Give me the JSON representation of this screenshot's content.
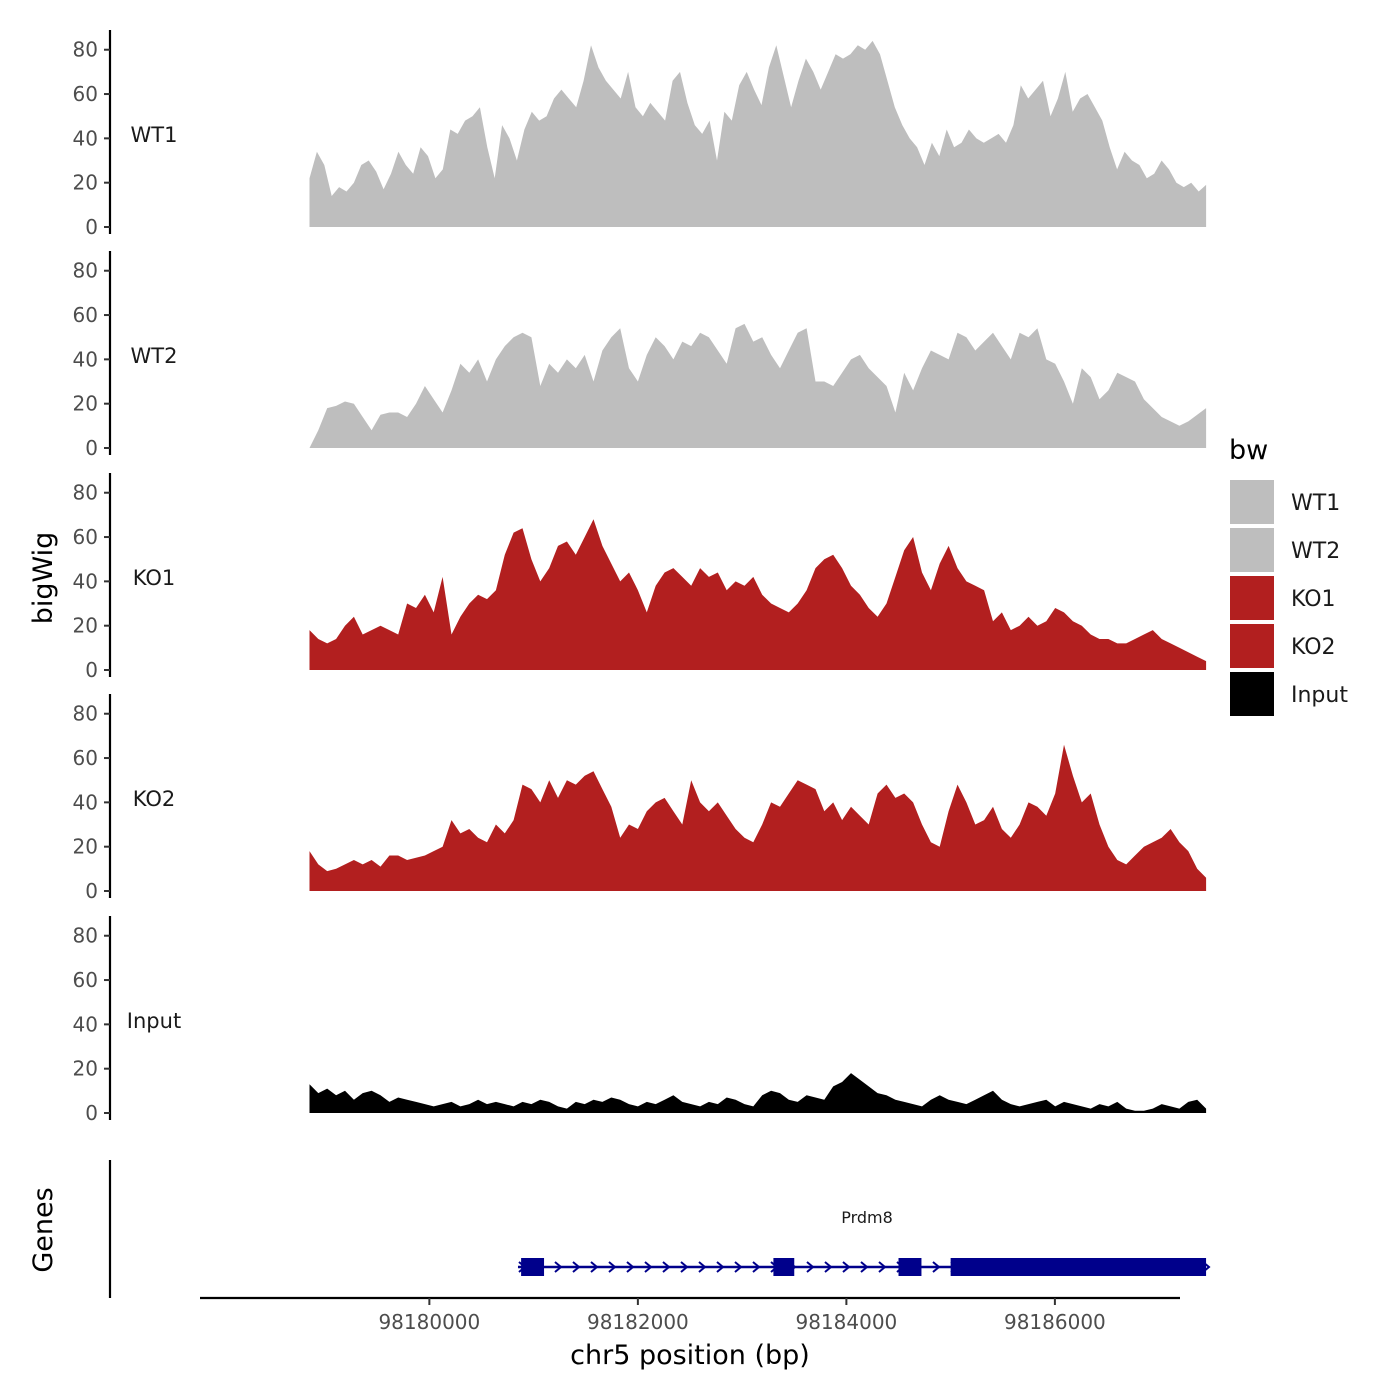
{
  "chart_data": {
    "type": "area",
    "title": "",
    "xlabel": "chr5 position (bp)",
    "ylabel": "bigWig",
    "genes_label": "Genes",
    "xlim": [
      98177800,
      98187200
    ],
    "xrange_data": [
      98178850,
      98187450
    ],
    "ylim": [
      0,
      88
    ],
    "yticks": [
      0,
      20,
      40,
      60,
      80
    ],
    "xticks": [
      98180000,
      98182000,
      98184000,
      98186000
    ],
    "legend": {
      "title": "bw",
      "position": "right",
      "entries": [
        {
          "label": "WT1",
          "color": "#bebebe"
        },
        {
          "label": "WT2",
          "color": "#bebebe"
        },
        {
          "label": "KO1",
          "color": "#b21f1f"
        },
        {
          "label": "KO2",
          "color": "#b21f1f"
        },
        {
          "label": "Input",
          "color": "#000000"
        }
      ]
    },
    "series": [
      {
        "name": "WT1",
        "color": "#bebebe",
        "values": [
          22,
          34,
          28,
          14,
          18,
          16,
          20,
          28,
          30,
          25,
          17,
          24,
          34,
          28,
          24,
          36,
          32,
          22,
          26,
          44,
          42,
          48,
          50,
          54,
          36,
          22,
          46,
          40,
          30,
          44,
          52,
          48,
          50,
          58,
          62,
          58,
          54,
          66,
          82,
          72,
          66,
          62,
          58,
          70,
          54,
          50,
          56,
          52,
          48,
          66,
          70,
          56,
          46,
          42,
          48,
          30,
          52,
          48,
          64,
          70,
          62,
          55,
          72,
          82,
          68,
          54,
          66,
          76,
          70,
          62,
          70,
          78,
          76,
          78,
          82,
          80,
          84,
          78,
          66,
          54,
          46,
          40,
          36,
          28,
          38,
          32,
          44,
          36,
          38,
          44,
          40,
          38,
          40,
          42,
          38,
          46,
          64,
          58,
          62,
          66,
          50,
          58,
          70,
          52,
          58,
          60,
          54,
          48,
          36,
          26,
          34,
          30,
          28,
          22,
          24,
          30,
          26,
          20,
          18,
          20,
          16,
          19
        ],
        "values_note": "sampled evenly across xrange_data"
      },
      {
        "name": "WT2",
        "color": "#bebebe",
        "values": [
          0,
          8,
          18,
          19,
          21,
          20,
          14,
          8,
          15,
          16,
          16,
          14,
          20,
          28,
          22,
          16,
          26,
          38,
          34,
          40,
          30,
          40,
          46,
          50,
          52,
          50,
          28,
          38,
          34,
          40,
          36,
          42,
          30,
          44,
          50,
          54,
          36,
          30,
          42,
          50,
          46,
          40,
          48,
          46,
          52,
          50,
          44,
          38,
          54,
          56,
          48,
          50,
          42,
          36,
          44,
          52,
          54,
          30,
          30,
          28,
          34,
          40,
          42,
          36,
          32,
          28,
          16,
          34,
          26,
          36,
          44,
          42,
          40,
          52,
          50,
          44,
          48,
          52,
          46,
          40,
          52,
          50,
          54,
          40,
          38,
          30,
          20,
          36,
          32,
          22,
          26,
          34,
          32,
          30,
          22,
          18,
          14,
          12,
          10,
          12,
          15,
          18
        ],
        "values_note": "sampled evenly across xrange_data"
      },
      {
        "name": "KO1",
        "color": "#b21f1f",
        "values": [
          18,
          14,
          12,
          14,
          20,
          24,
          16,
          18,
          20,
          18,
          16,
          30,
          28,
          34,
          26,
          42,
          16,
          24,
          30,
          34,
          32,
          36,
          52,
          62,
          64,
          50,
          40,
          46,
          56,
          58,
          52,
          60,
          68,
          56,
          48,
          40,
          44,
          36,
          26,
          38,
          44,
          46,
          42,
          38,
          46,
          42,
          44,
          36,
          40,
          38,
          42,
          34,
          30,
          28,
          26,
          30,
          36,
          46,
          50,
          52,
          46,
          38,
          34,
          28,
          24,
          30,
          42,
          54,
          60,
          44,
          36,
          48,
          56,
          46,
          40,
          38,
          36,
          22,
          26,
          18,
          20,
          24,
          20,
          22,
          28,
          26,
          22,
          20,
          16,
          14,
          14,
          12,
          12,
          14,
          16,
          18,
          14,
          12,
          10,
          8,
          6,
          4
        ],
        "values_note": "sampled evenly across xrange_data"
      },
      {
        "name": "KO2",
        "color": "#b21f1f",
        "values": [
          18,
          12,
          9,
          10,
          12,
          14,
          12,
          14,
          11,
          16,
          16,
          14,
          15,
          16,
          18,
          20,
          32,
          26,
          28,
          24,
          22,
          30,
          26,
          32,
          48,
          46,
          40,
          50,
          42,
          50,
          48,
          52,
          54,
          46,
          38,
          24,
          30,
          28,
          36,
          40,
          42,
          36,
          30,
          50,
          40,
          36,
          40,
          34,
          28,
          24,
          22,
          30,
          40,
          38,
          44,
          50,
          48,
          46,
          36,
          40,
          32,
          38,
          34,
          30,
          44,
          48,
          42,
          44,
          40,
          30,
          22,
          20,
          36,
          48,
          40,
          30,
          32,
          38,
          28,
          24,
          30,
          40,
          38,
          34,
          44,
          66,
          52,
          40,
          44,
          30,
          20,
          14,
          12,
          16,
          20,
          22,
          24,
          28,
          22,
          18,
          10,
          6
        ],
        "values_note": "sampled evenly across xrange_data"
      },
      {
        "name": "Input",
        "color": "#000000",
        "values": [
          13,
          9,
          11,
          8,
          10,
          6,
          9,
          10,
          8,
          5,
          7,
          6,
          5,
          4,
          3,
          4,
          5,
          3,
          4,
          6,
          4,
          5,
          4,
          3,
          5,
          4,
          6,
          5,
          3,
          2,
          5,
          4,
          6,
          5,
          7,
          6,
          4,
          3,
          5,
          4,
          6,
          8,
          5,
          4,
          3,
          5,
          4,
          7,
          6,
          4,
          3,
          8,
          10,
          9,
          6,
          5,
          8,
          7,
          6,
          12,
          14,
          18,
          15,
          12,
          9,
          8,
          6,
          5,
          4,
          3,
          6,
          8,
          6,
          5,
          4,
          6,
          8,
          10,
          6,
          4,
          3,
          4,
          5,
          6,
          3,
          5,
          4,
          3,
          2,
          4,
          3,
          5,
          2,
          1,
          1,
          2,
          4,
          3,
          2,
          5,
          6,
          2
        ],
        "values_note": "sampled evenly across xrange_data"
      }
    ],
    "gene": {
      "name": "Prdm8",
      "color": "#00008b",
      "strand": "+",
      "span": [
        98180850,
        98187450
      ],
      "exons": [
        [
          98180880,
          98181100
        ],
        [
          98183300,
          98183500
        ],
        [
          98184500,
          98184720
        ],
        [
          98185000,
          98187450
        ]
      ]
    }
  }
}
